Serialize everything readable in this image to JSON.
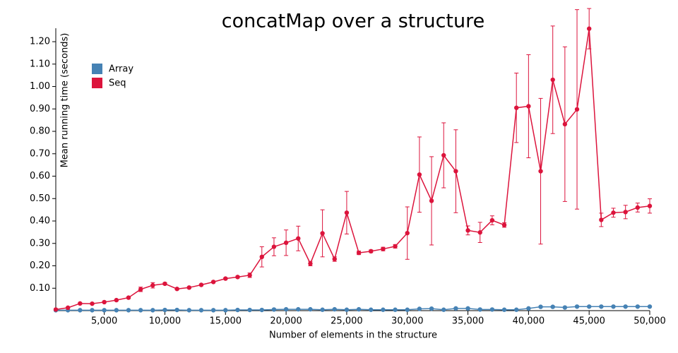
{
  "chart_data": {
    "type": "line",
    "title": "concatMap over a structure",
    "x_label": "Number of elements in the structure",
    "y_label": "Mean running time (seconds)",
    "x": [
      1000,
      2000,
      3000,
      4000,
      5000,
      6000,
      7000,
      8000,
      9000,
      10000,
      11000,
      12000,
      13000,
      14000,
      15000,
      16000,
      17000,
      18000,
      19000,
      20000,
      21000,
      22000,
      23000,
      24000,
      25000,
      26000,
      27000,
      28000,
      29000,
      30000,
      31000,
      32000,
      33000,
      34000,
      35000,
      36000,
      37000,
      38000,
      39000,
      40000,
      41000,
      42000,
      43000,
      44000,
      45000,
      46000,
      47000,
      48000,
      49000,
      50000
    ],
    "series": [
      {
        "name": "Array",
        "color": "#4682b4",
        "values": [
          0.002,
          0.002,
          0.002,
          0.002,
          0.002,
          0.002,
          0.002,
          0.002,
          0.002,
          0.003,
          0.003,
          0.002,
          0.002,
          0.002,
          0.002,
          0.003,
          0.003,
          0.003,
          0.005,
          0.006,
          0.006,
          0.006,
          0.004,
          0.006,
          0.004,
          0.006,
          0.004,
          0.004,
          0.004,
          0.004,
          0.008,
          0.009,
          0.004,
          0.01,
          0.01,
          0.005,
          0.005,
          0.004,
          0.004,
          0.01,
          0.017,
          0.017,
          0.014,
          0.018,
          0.018,
          0.018,
          0.018,
          0.018,
          0.018,
          0.018
        ],
        "errors": [
          0.001,
          0.001,
          0.001,
          0.001,
          0.001,
          0.001,
          0.001,
          0.001,
          0.001,
          0.001,
          0.001,
          0.001,
          0.001,
          0.001,
          0.001,
          0.001,
          0.001,
          0.001,
          0.002,
          0.002,
          0.002,
          0.002,
          0.001,
          0.002,
          0.001,
          0.002,
          0.001,
          0.001,
          0.001,
          0.001,
          0.002,
          0.002,
          0.001,
          0.003,
          0.003,
          0.001,
          0.001,
          0.001,
          0.001,
          0.002,
          0.003,
          0.003,
          0.002,
          0.002,
          0.002,
          0.002,
          0.002,
          0.002,
          0.002,
          0.002
        ]
      },
      {
        "name": "Seq",
        "color": "#dc143c",
        "values": [
          0.005,
          0.013,
          0.032,
          0.031,
          0.038,
          0.047,
          0.058,
          0.095,
          0.113,
          0.12,
          0.097,
          0.103,
          0.115,
          0.128,
          0.143,
          0.15,
          0.158,
          0.24,
          0.285,
          0.303,
          0.322,
          0.21,
          0.345,
          0.23,
          0.437,
          0.258,
          0.265,
          0.275,
          0.287,
          0.346,
          0.607,
          0.49,
          0.693,
          0.622,
          0.358,
          0.349,
          0.403,
          0.382,
          0.905,
          0.912,
          0.622,
          1.03,
          0.832,
          0.898,
          1.258,
          0.405,
          0.437,
          0.44,
          0.46,
          0.467
        ],
        "errors": [
          0.002,
          0.002,
          0.003,
          0.003,
          0.003,
          0.003,
          0.004,
          0.01,
          0.012,
          0.005,
          0.004,
          0.004,
          0.004,
          0.004,
          0.004,
          0.004,
          0.01,
          0.045,
          0.04,
          0.057,
          0.055,
          0.01,
          0.105,
          0.01,
          0.095,
          0.008,
          0.006,
          0.008,
          0.008,
          0.117,
          0.168,
          0.197,
          0.145,
          0.185,
          0.02,
          0.045,
          0.02,
          0.01,
          0.155,
          0.23,
          0.325,
          0.24,
          0.345,
          0.445,
          0.09,
          0.03,
          0.02,
          0.03,
          0.02,
          0.032
        ]
      }
    ],
    "xlim": [
      1000,
      50000
    ],
    "xticks": [
      {
        "value": 5000,
        "label": "5,000"
      },
      {
        "value": 10000,
        "label": "10,000"
      },
      {
        "value": 15000,
        "label": "15,000"
      },
      {
        "value": 20000,
        "label": "20,000"
      },
      {
        "value": 25000,
        "label": "25,000"
      },
      {
        "value": 30000,
        "label": "30,000"
      },
      {
        "value": 35000,
        "label": "35,000"
      },
      {
        "value": 40000,
        "label": "40,000"
      },
      {
        "value": 45000,
        "label": "45,000"
      },
      {
        "value": 50000,
        "label": "50,000"
      }
    ],
    "ylim": [
      0,
      1.26
    ],
    "yticks": [
      {
        "value": 0.1,
        "label": "0.10"
      },
      {
        "value": 0.2,
        "label": "0.20"
      },
      {
        "value": 0.3,
        "label": "0.30"
      },
      {
        "value": 0.4,
        "label": "0.40"
      },
      {
        "value": 0.5,
        "label": "0.50"
      },
      {
        "value": 0.6,
        "label": "0.60"
      },
      {
        "value": 0.7,
        "label": "0.70"
      },
      {
        "value": 0.8,
        "label": "0.80"
      },
      {
        "value": 0.9,
        "label": "0.90"
      },
      {
        "value": 1.0,
        "label": "1.00"
      },
      {
        "value": 1.1,
        "label": "1.10"
      },
      {
        "value": 1.2,
        "label": "1.20"
      }
    ],
    "legend": "upper left"
  }
}
